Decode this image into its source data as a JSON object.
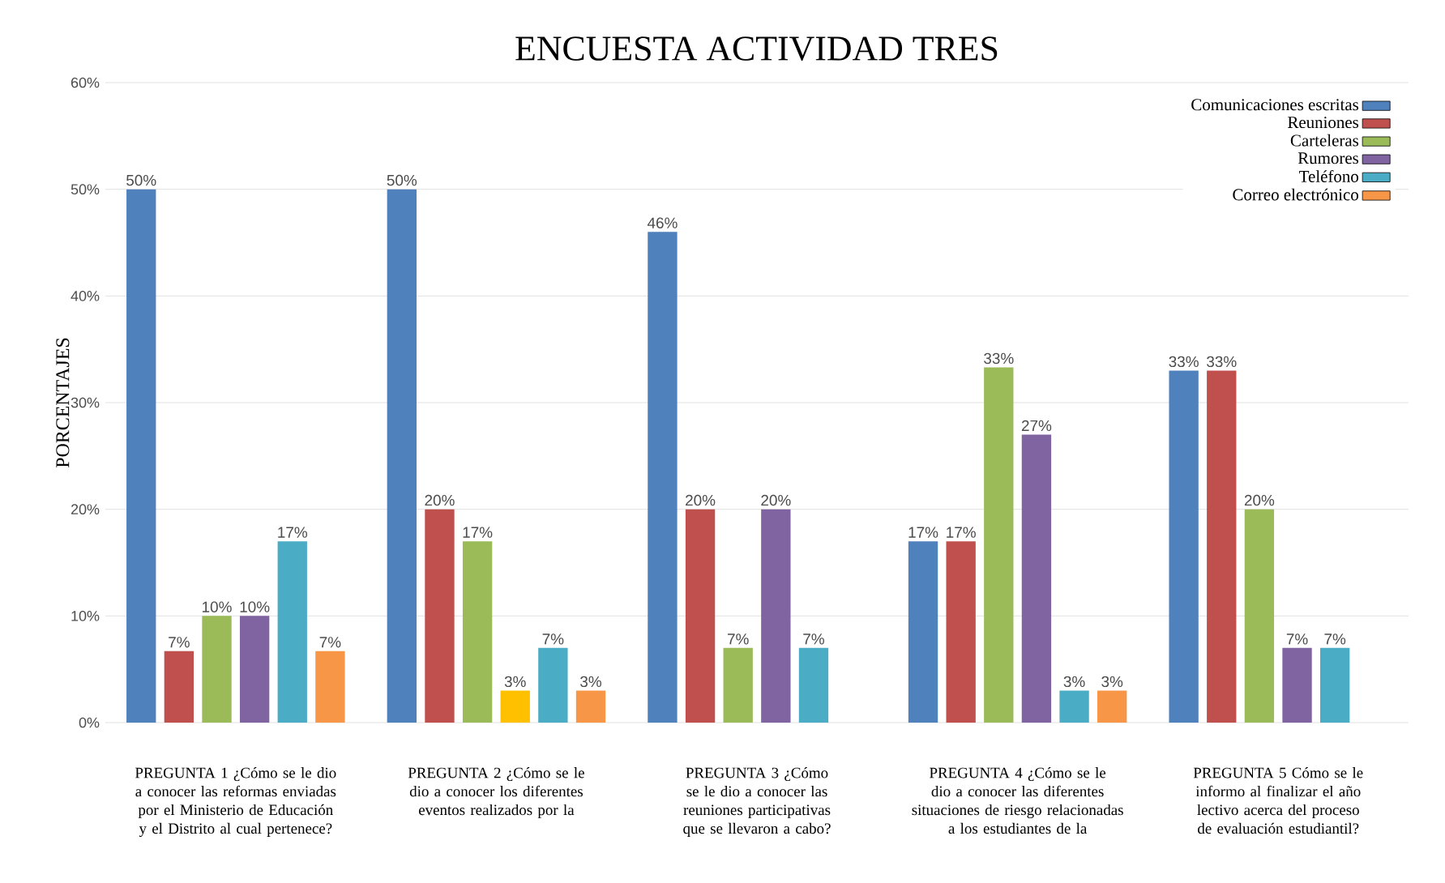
{
  "chart_data": {
    "type": "bar",
    "title": "ENCUESTA ACTIVIDAD  TRES",
    "ylabel": "PORCENTAJES",
    "categories": [
      "PREGUNTA 1 ¿Cómo se le dio a conocer las reformas enviadas por el Ministerio de Educación y el Distrito al cual pertenece?",
      "PREGUNTA 2 ¿Cómo se le dio a conocer los diferentes eventos realizados por la",
      "PREGUNTA 3 ¿Cómo se le dio a conocer las reuniones participativas que se llevaron a cabo?",
      "PREGUNTA 4 ¿Cómo se le dio a conocer las diferentes situaciones de riesgo relacionadas a los estudiantes de la",
      "PREGUNTA 5 Cómo se le informo al finalizar el año lectivo acerca del proceso de evaluación estudiantil?"
    ],
    "series": [
      {
        "name": "Comunicaciones escritas",
        "color": "#4f81bd",
        "values": [
          50,
          50,
          46,
          17,
          33
        ],
        "value_labels": [
          "50%",
          "50%",
          "46%",
          "17%",
          "33%"
        ]
      },
      {
        "name": "Reuniones",
        "color": "#c0504d",
        "values": [
          6.7,
          20,
          20,
          17,
          33
        ],
        "value_labels": [
          "7%",
          "20%",
          "20%",
          "17%",
          "33%"
        ]
      },
      {
        "name": "Carteleras",
        "color": "#9bbb59",
        "values": [
          10,
          17,
          7,
          33.3,
          20
        ],
        "value_labels": [
          "10%",
          "17%",
          "7%",
          "33%",
          "20%"
        ]
      },
      {
        "name": "Rumores",
        "color": "#8064a2",
        "colors": [
          "#8064a2",
          "#ffc000",
          "#8064a2",
          "#8064a2",
          "#8064a2"
        ],
        "values": [
          10,
          3,
          20,
          27,
          7
        ],
        "value_labels": [
          "10%",
          "3%",
          "20%",
          "27%",
          "7%"
        ]
      },
      {
        "name": "Teléfono",
        "color": "#4bacc6",
        "values": [
          17,
          7,
          7,
          3,
          7
        ],
        "value_labels": [
          "17%",
          "7%",
          "7%",
          "3%",
          "7%"
        ]
      },
      {
        "name": "Correo electrónico",
        "color": "#f79646",
        "values": [
          6.7,
          3,
          null,
          3,
          null
        ],
        "value_labels": [
          "7%",
          "3%",
          null,
          "3%",
          null
        ]
      }
    ],
    "ylim": [
      0,
      60
    ],
    "yticks": [
      {
        "value": 0,
        "label": "0%"
      },
      {
        "value": 10,
        "label": "10%"
      },
      {
        "value": 20,
        "label": "20%"
      },
      {
        "value": 30,
        "label": "30%"
      },
      {
        "value": 40,
        "label": "40%"
      },
      {
        "value": 50,
        "label": "50%"
      },
      {
        "value": 60,
        "label": "60%"
      }
    ],
    "grid": "y",
    "legend": "top right"
  }
}
